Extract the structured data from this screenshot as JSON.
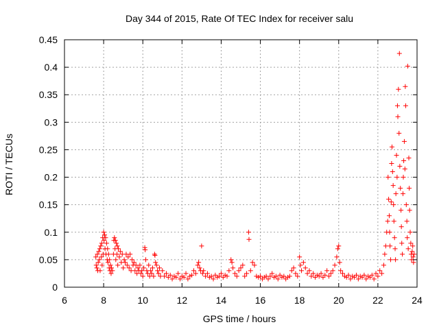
{
  "chart_data": {
    "type": "scatter",
    "title": "Day 344 of 2015, Rate Of TEC Index for receiver salu",
    "xlabel": "GPS time / hours",
    "ylabel": "ROTI / TECUs",
    "xlim": [
      6,
      24
    ],
    "ylim": [
      0,
      0.45
    ],
    "x_ticks": [
      6,
      8,
      10,
      12,
      14,
      16,
      18,
      20,
      22,
      24
    ],
    "y_ticks": [
      0,
      0.05,
      0.1,
      0.15,
      0.2,
      0.25,
      0.3,
      0.35,
      0.4,
      0.45
    ],
    "x_tick_labels": [
      "6",
      "8",
      "10",
      "12",
      "14",
      "16",
      "18",
      "20",
      "22",
      "24"
    ],
    "y_tick_labels": [
      "0",
      "0.05",
      "0.1",
      "0.15",
      "0.2",
      "0.25",
      "0.3",
      "0.35",
      "0.4",
      "0.45"
    ],
    "grid": true,
    "legend": "none",
    "marker": "+",
    "color": "#ff0000",
    "series": [
      {
        "points": [
          [
            7.6,
            0.055
          ],
          [
            7.62,
            0.04
          ],
          [
            7.65,
            0.035
          ],
          [
            7.68,
            0.06
          ],
          [
            7.7,
            0.03
          ],
          [
            7.72,
            0.045
          ],
          [
            7.75,
            0.065
          ],
          [
            7.78,
            0.05
          ],
          [
            7.8,
            0.07
          ],
          [
            7.82,
            0.03
          ],
          [
            7.85,
            0.075
          ],
          [
            7.88,
            0.055
          ],
          [
            7.9,
            0.08
          ],
          [
            7.92,
            0.04
          ],
          [
            7.95,
            0.09
          ],
          [
            7.97,
            0.06
          ],
          [
            8.0,
            0.1
          ],
          [
            8.02,
            0.085
          ],
          [
            8.05,
            0.095
          ],
          [
            8.07,
            0.07
          ],
          [
            8.1,
            0.09
          ],
          [
            8.12,
            0.06
          ],
          [
            8.15,
            0.08
          ],
          [
            8.18,
            0.05
          ],
          [
            8.2,
            0.07
          ],
          [
            8.22,
            0.045
          ],
          [
            8.25,
            0.06
          ],
          [
            8.28,
            0.035
          ],
          [
            8.3,
            0.05
          ],
          [
            8.32,
            0.03
          ],
          [
            8.35,
            0.04
          ],
          [
            8.38,
            0.025
          ],
          [
            8.4,
            0.035
          ],
          [
            8.45,
            0.03
          ],
          [
            8.5,
            0.06
          ],
          [
            8.52,
            0.085
          ],
          [
            8.55,
            0.09
          ],
          [
            8.58,
            0.07
          ],
          [
            8.6,
            0.085
          ],
          [
            8.62,
            0.05
          ],
          [
            8.65,
            0.08
          ],
          [
            8.68,
            0.06
          ],
          [
            8.7,
            0.075
          ],
          [
            8.72,
            0.04
          ],
          [
            8.75,
            0.07
          ],
          [
            8.8,
            0.055
          ],
          [
            8.85,
            0.065
          ],
          [
            8.9,
            0.045
          ],
          [
            8.95,
            0.06
          ],
          [
            9.0,
            0.035
          ],
          [
            9.05,
            0.05
          ],
          [
            9.1,
            0.045
          ],
          [
            9.15,
            0.06
          ],
          [
            9.2,
            0.04
          ],
          [
            9.25,
            0.055
          ],
          [
            9.3,
            0.035
          ],
          [
            9.35,
            0.06
          ],
          [
            9.4,
            0.03
          ],
          [
            9.45,
            0.05
          ],
          [
            9.5,
            0.04
          ],
          [
            9.55,
            0.045
          ],
          [
            9.6,
            0.03
          ],
          [
            9.65,
            0.04
          ],
          [
            9.7,
            0.025
          ],
          [
            9.75,
            0.035
          ],
          [
            9.8,
            0.03
          ],
          [
            9.85,
            0.04
          ],
          [
            9.9,
            0.025
          ],
          [
            9.95,
            0.03
          ],
          [
            10.0,
            0.02
          ],
          [
            10.05,
            0.035
          ],
          [
            10.1,
            0.072
          ],
          [
            10.12,
            0.068
          ],
          [
            10.15,
            0.05
          ],
          [
            10.2,
            0.03
          ],
          [
            10.25,
            0.025
          ],
          [
            10.3,
            0.04
          ],
          [
            10.35,
            0.02
          ],
          [
            10.4,
            0.03
          ],
          [
            10.45,
            0.025
          ],
          [
            10.5,
            0.035
          ],
          [
            10.55,
            0.02
          ],
          [
            10.6,
            0.06
          ],
          [
            10.62,
            0.058
          ],
          [
            10.65,
            0.045
          ],
          [
            10.7,
            0.04
          ],
          [
            10.75,
            0.03
          ],
          [
            10.8,
            0.025
          ],
          [
            10.85,
            0.035
          ],
          [
            10.9,
            0.02
          ],
          [
            11.0,
            0.03
          ],
          [
            11.1,
            0.02
          ],
          [
            11.2,
            0.025
          ],
          [
            11.3,
            0.018
          ],
          [
            11.4,
            0.022
          ],
          [
            11.5,
            0.015
          ],
          [
            11.6,
            0.02
          ],
          [
            11.7,
            0.018
          ],
          [
            11.8,
            0.025
          ],
          [
            11.9,
            0.015
          ],
          [
            12.0,
            0.02
          ],
          [
            12.1,
            0.018
          ],
          [
            12.2,
            0.025
          ],
          [
            12.3,
            0.015
          ],
          [
            12.4,
            0.02
          ],
          [
            12.5,
            0.022
          ],
          [
            12.6,
            0.03
          ],
          [
            12.7,
            0.025
          ],
          [
            12.8,
            0.04
          ],
          [
            12.85,
            0.045
          ],
          [
            12.9,
            0.035
          ],
          [
            12.95,
            0.03
          ],
          [
            13.0,
            0.075
          ],
          [
            13.05,
            0.025
          ],
          [
            13.1,
            0.03
          ],
          [
            13.2,
            0.02
          ],
          [
            13.3,
            0.025
          ],
          [
            13.4,
            0.018
          ],
          [
            13.5,
            0.02
          ],
          [
            13.6,
            0.015
          ],
          [
            13.7,
            0.022
          ],
          [
            13.8,
            0.018
          ],
          [
            13.9,
            0.02
          ],
          [
            14.0,
            0.025
          ],
          [
            14.1,
            0.018
          ],
          [
            14.2,
            0.022
          ],
          [
            14.3,
            0.02
          ],
          [
            14.4,
            0.03
          ],
          [
            14.5,
            0.05
          ],
          [
            14.55,
            0.045
          ],
          [
            14.6,
            0.035
          ],
          [
            14.7,
            0.025
          ],
          [
            14.8,
            0.02
          ],
          [
            14.9,
            0.03
          ],
          [
            15.0,
            0.035
          ],
          [
            15.1,
            0.04
          ],
          [
            15.2,
            0.02
          ],
          [
            15.3,
            0.025
          ],
          [
            15.4,
            0.1
          ],
          [
            15.42,
            0.087
          ],
          [
            15.5,
            0.03
          ],
          [
            15.6,
            0.045
          ],
          [
            15.7,
            0.04
          ],
          [
            15.8,
            0.02
          ],
          [
            15.9,
            0.018
          ],
          [
            16.0,
            0.02
          ],
          [
            16.1,
            0.015
          ],
          [
            16.2,
            0.018
          ],
          [
            16.3,
            0.02
          ],
          [
            16.4,
            0.015
          ],
          [
            16.5,
            0.02
          ],
          [
            16.6,
            0.025
          ],
          [
            16.7,
            0.018
          ],
          [
            16.8,
            0.02
          ],
          [
            16.9,
            0.015
          ],
          [
            17.0,
            0.022
          ],
          [
            17.1,
            0.018
          ],
          [
            17.2,
            0.02
          ],
          [
            17.3,
            0.015
          ],
          [
            17.4,
            0.018
          ],
          [
            17.5,
            0.02
          ],
          [
            17.6,
            0.03
          ],
          [
            17.7,
            0.035
          ],
          [
            17.8,
            0.025
          ],
          [
            17.9,
            0.02
          ],
          [
            18.0,
            0.055
          ],
          [
            18.05,
            0.04
          ],
          [
            18.1,
            0.03
          ],
          [
            18.2,
            0.045
          ],
          [
            18.3,
            0.035
          ],
          [
            18.4,
            0.025
          ],
          [
            18.5,
            0.03
          ],
          [
            18.6,
            0.02
          ],
          [
            18.7,
            0.025
          ],
          [
            18.8,
            0.018
          ],
          [
            18.9,
            0.022
          ],
          [
            19.0,
            0.02
          ],
          [
            19.1,
            0.025
          ],
          [
            19.2,
            0.018
          ],
          [
            19.3,
            0.022
          ],
          [
            19.4,
            0.03
          ],
          [
            19.5,
            0.02
          ],
          [
            19.6,
            0.025
          ],
          [
            19.7,
            0.03
          ],
          [
            19.8,
            0.04
          ],
          [
            19.9,
            0.055
          ],
          [
            19.95,
            0.07
          ],
          [
            20.0,
            0.075
          ],
          [
            20.05,
            0.045
          ],
          [
            20.1,
            0.03
          ],
          [
            20.2,
            0.025
          ],
          [
            20.3,
            0.02
          ],
          [
            20.4,
            0.018
          ],
          [
            20.5,
            0.022
          ],
          [
            20.6,
            0.015
          ],
          [
            20.7,
            0.02
          ],
          [
            20.8,
            0.018
          ],
          [
            20.9,
            0.022
          ],
          [
            21.0,
            0.015
          ],
          [
            21.1,
            0.02
          ],
          [
            21.2,
            0.018
          ],
          [
            21.3,
            0.022
          ],
          [
            21.4,
            0.015
          ],
          [
            21.5,
            0.02
          ],
          [
            21.6,
            0.018
          ],
          [
            21.7,
            0.022
          ],
          [
            21.8,
            0.015
          ],
          [
            21.9,
            0.025
          ],
          [
            22.0,
            0.02
          ],
          [
            22.1,
            0.03
          ],
          [
            22.2,
            0.025
          ],
          [
            22.3,
            0.04
          ],
          [
            22.35,
            0.06
          ],
          [
            22.4,
            0.075
          ],
          [
            22.45,
            0.1
          ],
          [
            22.5,
            0.12
          ],
          [
            22.52,
            0.2
          ],
          [
            22.55,
            0.16
          ],
          [
            22.58,
            0.13
          ],
          [
            22.6,
            0.1
          ],
          [
            22.62,
            0.075
          ],
          [
            22.65,
            0.05
          ],
          [
            22.68,
            0.155
          ],
          [
            22.7,
            0.225
          ],
          [
            22.72,
            0.255
          ],
          [
            22.75,
            0.21
          ],
          [
            22.78,
            0.185
          ],
          [
            22.8,
            0.15
          ],
          [
            22.82,
            0.12
          ],
          [
            22.85,
            0.09
          ],
          [
            22.88,
            0.07
          ],
          [
            22.9,
            0.05
          ],
          [
            22.92,
            0.17
          ],
          [
            22.95,
            0.24
          ],
          [
            22.98,
            0.2
          ],
          [
            23.0,
            0.33
          ],
          [
            23.02,
            0.31
          ],
          [
            23.05,
            0.36
          ],
          [
            23.08,
            0.28
          ],
          [
            23.1,
            0.425
          ],
          [
            23.12,
            0.22
          ],
          [
            23.15,
            0.18
          ],
          [
            23.18,
            0.14
          ],
          [
            23.2,
            0.11
          ],
          [
            23.22,
            0.08
          ],
          [
            23.25,
            0.06
          ],
          [
            23.28,
            0.17
          ],
          [
            23.3,
            0.2
          ],
          [
            23.32,
            0.23
          ],
          [
            23.35,
            0.265
          ],
          [
            23.38,
            0.215
          ],
          [
            23.4,
            0.365
          ],
          [
            23.42,
            0.33
          ],
          [
            23.45,
            0.15
          ],
          [
            23.48,
            0.12
          ],
          [
            23.5,
            0.09
          ],
          [
            23.52,
            0.402
          ],
          [
            23.55,
            0.07
          ],
          [
            23.58,
            0.235
          ],
          [
            23.6,
            0.18
          ],
          [
            23.62,
            0.14
          ],
          [
            23.65,
            0.1
          ],
          [
            23.68,
            0.08
          ],
          [
            23.7,
            0.06
          ],
          [
            23.72,
            0.05
          ],
          [
            23.75,
            0.065
          ],
          [
            23.78,
            0.075
          ],
          [
            23.8,
            0.055
          ],
          [
            23.82,
            0.045
          ],
          [
            23.85,
            0.06
          ]
        ]
      }
    ]
  }
}
